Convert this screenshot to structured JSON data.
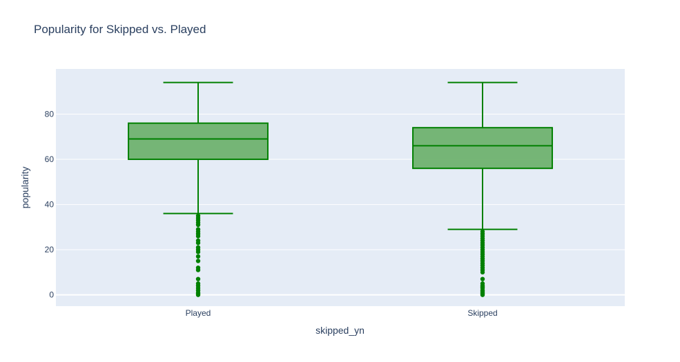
{
  "chart_data": {
    "type": "box",
    "title": "Popularity for Skipped vs. Played",
    "xlabel": "skipped_yn",
    "ylabel": "popularity",
    "categories": [
      "Played",
      "Skipped"
    ],
    "ylim": [
      -5,
      100
    ],
    "yticks": [
      0,
      20,
      40,
      60,
      80
    ],
    "grid": true,
    "colors": {
      "plot_bg": "#e5ecf6",
      "box_line": "#008000",
      "box_fill": "#6fb26f",
      "text": "#2a3f5f",
      "tick_text": "#2a3f5f"
    },
    "boxes": [
      {
        "category": "Played",
        "q1": 60,
        "median": 69,
        "q3": 76,
        "lower_fence": 36,
        "upper_fence": 94,
        "outliers": [
          0,
          0.5,
          1,
          2,
          3,
          4,
          5,
          7,
          11,
          12,
          15,
          17,
          19,
          20,
          21,
          23,
          24,
          26,
          27,
          28,
          29,
          31,
          32,
          33,
          34,
          35
        ]
      },
      {
        "category": "Skipped",
        "q1": 56,
        "median": 66,
        "q3": 74,
        "lower_fence": 29,
        "upper_fence": 94,
        "outliers": [
          0,
          0.5,
          1,
          1.5,
          2,
          3,
          3.5,
          4,
          5,
          7,
          10,
          11,
          12,
          13,
          14,
          15,
          16,
          17,
          18,
          19,
          20,
          21,
          22,
          23,
          24,
          25,
          26,
          27,
          28
        ]
      }
    ]
  }
}
